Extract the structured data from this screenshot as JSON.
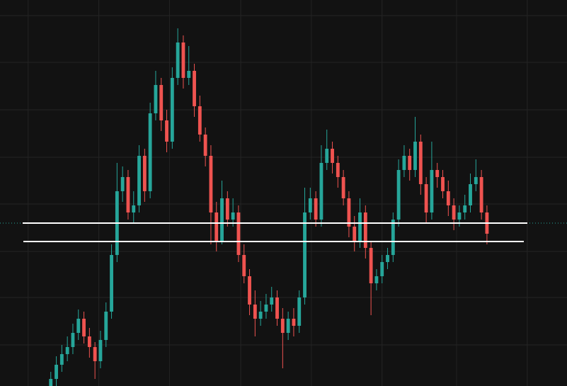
{
  "chart_data": {
    "type": "candlestick",
    "up_color": "#26a69a",
    "down_color": "#ef5350",
    "grid": true,
    "grid_color": "#242424",
    "background": "#121212",
    "xlim": [
      -9.2,
      93.5
    ],
    "xticks": [
      -4.1,
      8.7,
      21.5,
      34.4,
      47.2,
      60,
      73.5,
      86.3
    ],
    "ylim": [
      0,
      545
    ],
    "yticks": [
      58,
      125,
      190,
      257,
      323,
      390,
      457,
      523
    ],
    "open": [
      0,
      10,
      30,
      45,
      55,
      75,
      95,
      70,
      55,
      35,
      65,
      105,
      185,
      275,
      295,
      245,
      255,
      325,
      275,
      385,
      425,
      375,
      345,
      435,
      485,
      435,
      445,
      395,
      355,
      325,
      245,
      205,
      265,
      235,
      245,
      185,
      155,
      115,
      95,
      105,
      115,
      125,
      95,
      75,
      95,
      85,
      125,
      245,
      265,
      235,
      315,
      335,
      315,
      295,
      265,
      225,
      205,
      245,
      195,
      145,
      155,
      175,
      185,
      235,
      305,
      325,
      305,
      345,
      285,
      245,
      305,
      295,
      275,
      255,
      235,
      245,
      255,
      285,
      295,
      245
    ],
    "high": [
      20,
      42,
      58,
      70,
      88,
      108,
      105,
      82,
      62,
      78,
      118,
      200,
      315,
      310,
      305,
      275,
      340,
      335,
      400,
      445,
      435,
      390,
      450,
      505,
      495,
      480,
      455,
      410,
      365,
      340,
      260,
      290,
      275,
      265,
      255,
      200,
      165,
      135,
      120,
      130,
      140,
      135,
      110,
      105,
      110,
      135,
      280,
      280,
      275,
      340,
      362,
      345,
      325,
      305,
      275,
      240,
      265,
      255,
      205,
      165,
      185,
      195,
      245,
      320,
      340,
      335,
      380,
      355,
      295,
      345,
      315,
      305,
      290,
      265,
      255,
      270,
      300,
      320,
      305,
      255
    ],
    "low": [
      0,
      0,
      20,
      35,
      45,
      65,
      60,
      40,
      10,
      25,
      55,
      95,
      175,
      260,
      235,
      230,
      245,
      260,
      265,
      375,
      360,
      330,
      335,
      425,
      420,
      425,
      380,
      345,
      310,
      200,
      190,
      200,
      225,
      225,
      175,
      145,
      100,
      70,
      85,
      95,
      105,
      85,
      25,
      65,
      70,
      75,
      115,
      235,
      225,
      225,
      305,
      300,
      280,
      255,
      210,
      190,
      195,
      180,
      100,
      135,
      145,
      165,
      175,
      225,
      295,
      290,
      295,
      270,
      230,
      235,
      280,
      265,
      240,
      220,
      225,
      235,
      245,
      275,
      235,
      200
    ],
    "close": [
      10,
      30,
      45,
      55,
      75,
      95,
      70,
      55,
      35,
      65,
      105,
      185,
      275,
      295,
      245,
      255,
      325,
      275,
      385,
      425,
      375,
      345,
      435,
      485,
      435,
      445,
      395,
      355,
      325,
      245,
      205,
      265,
      235,
      245,
      185,
      155,
      115,
      95,
      105,
      115,
      125,
      95,
      75,
      95,
      85,
      125,
      245,
      265,
      235,
      315,
      335,
      315,
      295,
      265,
      225,
      205,
      245,
      195,
      145,
      155,
      175,
      185,
      235,
      305,
      325,
      305,
      345,
      285,
      245,
      305,
      295,
      275,
      255,
      235,
      245,
      255,
      285,
      295,
      245,
      215
    ],
    "price_line": {
      "value": 230,
      "color": "#26a69a"
    },
    "levels": [
      {
        "value": 230,
        "color": "#ffffff"
      },
      {
        "value": 204,
        "color": "#ffffff"
      }
    ]
  }
}
